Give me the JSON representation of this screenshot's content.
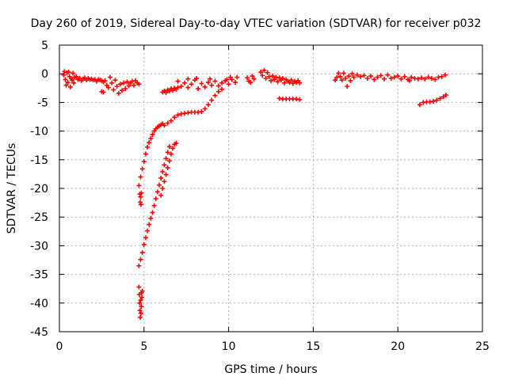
{
  "chart_data": {
    "type": "scatter",
    "title": "Day 260 of 2019, Sidereal Day-to-day VTEC variation (SDTVAR) for receiver p032",
    "xlabel": "GPS time / hours",
    "ylabel": "SDTVAR / TECUs",
    "xlim": [
      0,
      25
    ],
    "ylim": [
      -45,
      5
    ],
    "xticks": [
      0,
      5,
      10,
      15,
      20,
      25
    ],
    "yticks": [
      5,
      0,
      -5,
      -10,
      -15,
      -20,
      -25,
      -30,
      -35,
      -40,
      -45
    ],
    "grid": true,
    "legend": "none",
    "marker": "plus",
    "colors": {
      "series": "#ff0000",
      "grid": "#b0b0b0",
      "axis": "#000000"
    },
    "series": [
      {
        "values": [
          [
            0.25,
            -0.2
          ],
          [
            0.3,
            0.4
          ],
          [
            0.35,
            -1.0
          ],
          [
            0.4,
            -2.0
          ],
          [
            0.45,
            0.2
          ],
          [
            0.5,
            -1.5
          ],
          [
            0.55,
            0.3
          ],
          [
            0.6,
            -0.5
          ],
          [
            0.65,
            -2.3
          ],
          [
            0.7,
            -0.8
          ],
          [
            0.75,
            -1.1
          ],
          [
            0.8,
            0.1
          ],
          [
            0.85,
            -1.6
          ],
          [
            0.9,
            -0.6
          ],
          [
            1.0,
            -0.5
          ],
          [
            1.1,
            -1.0
          ],
          [
            1.2,
            -0.8
          ],
          [
            1.3,
            -1.2
          ],
          [
            1.4,
            -0.9
          ],
          [
            1.5,
            -0.7
          ],
          [
            1.6,
            -1.1
          ],
          [
            1.7,
            -0.8
          ],
          [
            1.8,
            -1.0
          ],
          [
            1.9,
            -0.9
          ],
          [
            2.0,
            -1.1
          ],
          [
            2.1,
            -1.0
          ],
          [
            2.2,
            -1.3
          ],
          [
            2.3,
            -1.0
          ],
          [
            2.4,
            -1.1
          ],
          [
            2.5,
            -1.2
          ],
          [
            2.6,
            -1.4
          ],
          [
            2.5,
            -3.1
          ],
          [
            2.6,
            -3.2
          ],
          [
            2.7,
            -1.2
          ],
          [
            2.8,
            -2.0
          ],
          [
            2.9,
            -2.4
          ],
          [
            3.0,
            -0.6
          ],
          [
            3.1,
            -1.6
          ],
          [
            3.2,
            -2.8
          ],
          [
            3.3,
            -1.1
          ],
          [
            3.4,
            -2.2
          ],
          [
            3.5,
            -3.4
          ],
          [
            3.6,
            -1.8
          ],
          [
            3.7,
            -2.9
          ],
          [
            3.8,
            -1.6
          ],
          [
            3.9,
            -2.6
          ],
          [
            4.0,
            -1.4
          ],
          [
            4.1,
            -2.1
          ],
          [
            4.2,
            -1.6
          ],
          [
            4.3,
            -1.3
          ],
          [
            4.4,
            -2.0
          ],
          [
            4.5,
            -1.2
          ],
          [
            4.6,
            -1.6
          ],
          [
            4.7,
            -1.8
          ],
          [
            4.7,
            -37.2
          ],
          [
            4.72,
            -38.5
          ],
          [
            4.74,
            -40.0
          ],
          [
            4.76,
            -41.3
          ],
          [
            4.78,
            -42.5
          ],
          [
            4.8,
            -39.5
          ],
          [
            4.82,
            -41.8
          ],
          [
            4.84,
            -40.6
          ],
          [
            4.86,
            -38.2
          ],
          [
            4.88,
            -39.0
          ],
          [
            4.9,
            -37.9
          ],
          [
            4.75,
            -21.0
          ],
          [
            4.78,
            -22.4
          ],
          [
            4.8,
            -21.5
          ],
          [
            4.82,
            -22.8
          ],
          [
            4.84,
            -20.8
          ],
          [
            4.7,
            -19.5
          ],
          [
            4.8,
            -18.0
          ],
          [
            4.9,
            -16.6
          ],
          [
            5.0,
            -15.3
          ],
          [
            5.1,
            -14.0
          ],
          [
            5.2,
            -12.8
          ],
          [
            5.3,
            -12.0
          ],
          [
            5.4,
            -11.3
          ],
          [
            5.5,
            -10.6
          ],
          [
            5.6,
            -10.0
          ],
          [
            5.7,
            -9.6
          ],
          [
            5.8,
            -9.3
          ],
          [
            5.9,
            -9.1
          ],
          [
            6.0,
            -8.9
          ],
          [
            6.1,
            -8.7
          ],
          [
            4.7,
            -33.5
          ],
          [
            4.8,
            -32.4
          ],
          [
            4.9,
            -31.2
          ],
          [
            5.0,
            -29.8
          ],
          [
            5.1,
            -28.6
          ],
          [
            5.2,
            -27.4
          ],
          [
            5.3,
            -26.3
          ],
          [
            5.4,
            -25.2
          ],
          [
            5.5,
            -24.2
          ],
          [
            5.6,
            -23.0
          ],
          [
            5.7,
            -21.8
          ],
          [
            5.8,
            -20.6
          ],
          [
            5.9,
            -19.4
          ],
          [
            6.0,
            -18.2
          ],
          [
            6.1,
            -17.1
          ],
          [
            6.2,
            -15.9
          ],
          [
            6.3,
            -14.8
          ],
          [
            6.4,
            -13.7
          ],
          [
            6.5,
            -12.7
          ],
          [
            6.0,
            -21.2
          ],
          [
            6.1,
            -20.0
          ],
          [
            6.2,
            -18.8
          ],
          [
            6.3,
            -17.6
          ],
          [
            6.4,
            -16.4
          ],
          [
            6.5,
            -15.2
          ],
          [
            6.6,
            -14.0
          ],
          [
            6.7,
            -13.0
          ],
          [
            6.8,
            -12.3
          ],
          [
            6.9,
            -12.1
          ],
          [
            6.1,
            -3.2
          ],
          [
            6.2,
            -3.0
          ],
          [
            6.3,
            -3.3
          ],
          [
            6.4,
            -2.8
          ],
          [
            6.5,
            -3.0
          ],
          [
            6.6,
            -2.6
          ],
          [
            6.7,
            -2.9
          ],
          [
            6.8,
            -2.5
          ],
          [
            6.9,
            -2.7
          ],
          [
            7.0,
            -2.4
          ],
          [
            6.2,
            -9.0
          ],
          [
            6.4,
            -8.6
          ],
          [
            6.6,
            -8.2
          ],
          [
            6.8,
            -7.6
          ],
          [
            7.0,
            -7.2
          ],
          [
            7.2,
            -7.0
          ],
          [
            7.4,
            -6.9
          ],
          [
            7.6,
            -6.8
          ],
          [
            7.8,
            -6.7
          ],
          [
            8.0,
            -6.7
          ],
          [
            8.2,
            -6.7
          ],
          [
            8.4,
            -6.6
          ],
          [
            8.6,
            -6.1
          ],
          [
            8.8,
            -5.4
          ],
          [
            9.0,
            -4.6
          ],
          [
            9.2,
            -3.8
          ],
          [
            9.4,
            -3.1
          ],
          [
            9.6,
            -2.7
          ],
          [
            7.0,
            -1.3
          ],
          [
            7.2,
            -2.2
          ],
          [
            7.4,
            -1.6
          ],
          [
            7.6,
            -2.4
          ],
          [
            7.8,
            -1.8
          ],
          [
            8.0,
            -1.1
          ],
          [
            8.2,
            -2.6
          ],
          [
            8.4,
            -1.7
          ],
          [
            8.6,
            -2.3
          ],
          [
            8.8,
            -1.5
          ],
          [
            9.0,
            -2.0
          ],
          [
            9.2,
            -1.3
          ],
          [
            9.4,
            -2.1
          ],
          [
            9.6,
            -1.6
          ],
          [
            9.8,
            -1.2
          ],
          [
            10.0,
            -1.8
          ],
          [
            10.2,
            -1.0
          ],
          [
            10.4,
            -1.5
          ],
          [
            10.5,
            -0.6
          ],
          [
            9.9,
            -1.0
          ],
          [
            10.1,
            -0.6
          ],
          [
            7.6,
            -0.9
          ],
          [
            8.1,
            -0.8
          ],
          [
            8.9,
            -0.9
          ],
          [
            11.1,
            -0.7
          ],
          [
            11.2,
            -1.3
          ],
          [
            11.3,
            -1.5
          ],
          [
            11.4,
            -0.4
          ],
          [
            11.5,
            -0.9
          ],
          [
            11.9,
            0.3
          ],
          [
            12.0,
            -0.3
          ],
          [
            12.1,
            0.6
          ],
          [
            12.2,
            -0.8
          ],
          [
            12.3,
            0.2
          ],
          [
            12.4,
            -0.5
          ],
          [
            12.5,
            -1.2
          ],
          [
            12.6,
            -0.4
          ],
          [
            12.7,
            -1.0
          ],
          [
            12.8,
            -0.6
          ],
          [
            12.9,
            -1.4
          ],
          [
            13.0,
            -0.7
          ],
          [
            13.1,
            -1.1
          ],
          [
            13.2,
            -0.8
          ],
          [
            13.3,
            -1.6
          ],
          [
            13.4,
            -1.0
          ],
          [
            13.5,
            -1.3
          ],
          [
            13.6,
            -1.5
          ],
          [
            13.7,
            -1.1
          ],
          [
            13.8,
            -1.7
          ],
          [
            13.9,
            -1.3
          ],
          [
            14.0,
            -1.5
          ],
          [
            14.1,
            -1.2
          ],
          [
            14.2,
            -1.6
          ],
          [
            13.0,
            -4.3
          ],
          [
            13.2,
            -4.4
          ],
          [
            13.4,
            -4.4
          ],
          [
            13.6,
            -4.4
          ],
          [
            13.8,
            -4.4
          ],
          [
            14.0,
            -4.4
          ],
          [
            14.2,
            -4.5
          ],
          [
            16.3,
            -1.1
          ],
          [
            16.4,
            -0.6
          ],
          [
            16.5,
            0.1
          ],
          [
            16.6,
            -0.5
          ],
          [
            16.7,
            -1.1
          ],
          [
            16.8,
            0.1
          ],
          [
            16.9,
            -0.8
          ],
          [
            17.0,
            -2.2
          ],
          [
            17.1,
            -0.4
          ],
          [
            17.2,
            -1.2
          ],
          [
            17.3,
            0.0
          ],
          [
            17.4,
            -0.6
          ],
          [
            17.6,
            -0.2
          ],
          [
            17.8,
            -0.5
          ],
          [
            18.0,
            -0.3
          ],
          [
            18.2,
            -0.8
          ],
          [
            18.4,
            -0.4
          ],
          [
            18.6,
            -1.0
          ],
          [
            18.8,
            -0.6
          ],
          [
            19.0,
            -0.3
          ],
          [
            19.2,
            -0.9
          ],
          [
            19.4,
            -0.2
          ],
          [
            19.6,
            -0.8
          ],
          [
            19.8,
            -0.6
          ],
          [
            20.0,
            -0.4
          ],
          [
            20.2,
            -0.9
          ],
          [
            20.4,
            -0.5
          ],
          [
            20.6,
            -1.0
          ],
          [
            20.8,
            -0.6
          ],
          [
            21.0,
            -0.8
          ],
          [
            21.2,
            -0.9
          ],
          [
            21.4,
            -0.7
          ],
          [
            21.6,
            -0.9
          ],
          [
            21.8,
            -0.6
          ],
          [
            22.0,
            -0.8
          ],
          [
            22.2,
            -1.0
          ],
          [
            22.4,
            -0.6
          ],
          [
            22.6,
            -0.5
          ],
          [
            22.8,
            -0.2
          ],
          [
            20.7,
            -1.2
          ],
          [
            21.3,
            -5.4
          ],
          [
            21.5,
            -5.0
          ],
          [
            21.7,
            -4.9
          ],
          [
            21.9,
            -4.9
          ],
          [
            22.1,
            -4.8
          ],
          [
            22.3,
            -4.6
          ],
          [
            22.5,
            -4.3
          ],
          [
            22.7,
            -4.0
          ],
          [
            22.85,
            -3.7
          ]
        ]
      }
    ]
  }
}
